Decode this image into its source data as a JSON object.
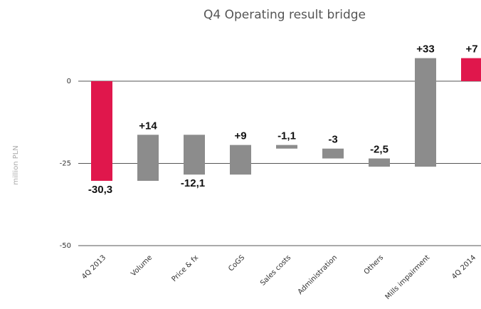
{
  "chart_data": {
    "type": "waterfall",
    "title": "Q4 Operating result bridge",
    "y_label": "million PLN",
    "categories": [
      "4Q 2013",
      "Volume",
      "Price & fx",
      "CoGS",
      "Sales costs",
      "Administration",
      "Others",
      "Mills impairment",
      "4Q 2014"
    ],
    "values": [
      -30.3,
      14,
      -12.1,
      9,
      -1.1,
      -3,
      -2.5,
      33,
      7
    ],
    "value_labels": [
      "-30,3",
      "+14",
      "-12,1",
      "+9",
      "-1,1",
      "-3",
      "-2,5",
      "+33",
      "+7"
    ],
    "is_total": [
      true,
      false,
      false,
      false,
      false,
      false,
      false,
      false,
      true
    ],
    "total_color": "#e0174c",
    "color": "#8c8c8c",
    "ylim": [
      -50,
      10
    ],
    "yticks": [
      0,
      -25,
      -50
    ],
    "grid": true
  }
}
